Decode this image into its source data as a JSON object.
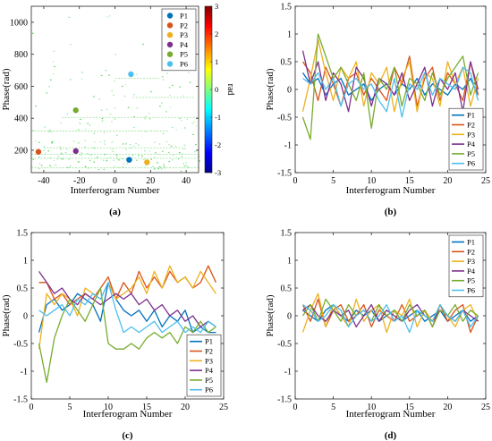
{
  "chart_data": [
    {
      "panel": "(a)",
      "type": "heatmap",
      "xlabel": "Interferogram Number",
      "ylabel": "Phase(rad)",
      "xlim": [
        -47,
        47
      ],
      "ylim": [
        60,
        1100
      ],
      "xticks": [
        -40,
        -20,
        0,
        20,
        40
      ],
      "yticks": [
        200,
        400,
        600,
        800,
        1000
      ],
      "colorbar": {
        "label": "rad",
        "range": [
          -3,
          3
        ],
        "ticks": [
          3,
          2,
          1,
          0,
          -1,
          -2,
          -3
        ]
      },
      "legend_position": "top-right",
      "points": [
        {
          "name": "P1",
          "x": 8,
          "y": 140,
          "color": "#0072BD"
        },
        {
          "name": "P2",
          "x": -43,
          "y": 190,
          "color": "#D95319"
        },
        {
          "name": "P3",
          "x": 18,
          "y": 125,
          "color": "#EDB120"
        },
        {
          "name": "P4",
          "x": -22,
          "y": 195,
          "color": "#7E2F8E"
        },
        {
          "name": "P5",
          "x": -22,
          "y": 450,
          "color": "#77AC30"
        },
        {
          "name": "P6",
          "x": 9,
          "y": 675,
          "color": "#4DBEEE"
        }
      ]
    },
    {
      "panel": "(b)",
      "type": "line",
      "xlabel": "Interferogram Number",
      "ylabel": "Phase(rad)",
      "xlim": [
        0,
        25
      ],
      "ylim": [
        -1.5,
        1.5
      ],
      "xticks": [
        0,
        5,
        10,
        15,
        20,
        25
      ],
      "yticks": [
        -1.5,
        -1,
        -0.5,
        0,
        0.5,
        1,
        1.5
      ],
      "legend_position": "bottom-right",
      "x": [
        1,
        2,
        3,
        4,
        5,
        6,
        7,
        8,
        9,
        10,
        11,
        12,
        13,
        14,
        15,
        16,
        17,
        18,
        19,
        20,
        21,
        22,
        23,
        24
      ],
      "series": [
        {
          "name": "P1",
          "color": "#0072BD",
          "values": [
            0.3,
            0.1,
            0.2,
            -0.1,
            0.1,
            0.2,
            -0.1,
            0.0,
            0.1,
            -0.2,
            0.0,
            0.1,
            -0.1,
            0.1,
            0.0,
            0.2,
            -0.1,
            0.1,
            0.0,
            -0.1,
            0.1,
            0.0,
            0.2,
            -0.1
          ]
        },
        {
          "name": "P2",
          "color": "#D95319",
          "values": [
            0.5,
            0.3,
            -0.2,
            0.4,
            0.1,
            -0.3,
            0.2,
            0.3,
            -0.1,
            0.2,
            0.0,
            -0.2,
            0.4,
            0.1,
            0.6,
            -0.3,
            0.2,
            0.4,
            -0.2,
            0.3,
            0.1,
            -0.2,
            0.5,
            -0.1
          ]
        },
        {
          "name": "P3",
          "color": "#EDB120",
          "values": [
            -0.4,
            0.2,
            0.9,
            0.3,
            -0.2,
            0.4,
            0.2,
            0.5,
            -0.3,
            0.3,
            0.1,
            0.4,
            -0.4,
            0.2,
            0.5,
            -0.4,
            0.3,
            0.2,
            -0.3,
            0.5,
            0.1,
            0.4,
            -0.3,
            0.2
          ]
        },
        {
          "name": "P4",
          "color": "#7E2F8E",
          "values": [
            0.7,
            0.1,
            0.5,
            -0.2,
            0.3,
            0.1,
            -0.4,
            0.4,
            0.2,
            -0.3,
            0.2,
            0.1,
            -0.1,
            0.3,
            -0.2,
            0.1,
            0.4,
            -0.3,
            0.2,
            0.0,
            0.3,
            -0.4,
            0.5,
            0.0
          ]
        },
        {
          "name": "P5",
          "color": "#77AC30",
          "values": [
            -0.5,
            -0.9,
            1.0,
            0.6,
            0.2,
            0.4,
            0.1,
            -0.2,
            0.3,
            -0.7,
            0.2,
            0.0,
            0.4,
            -0.3,
            0.2,
            0.1,
            -0.2,
            0.3,
            -0.1,
            0.2,
            0.4,
            0.6,
            -0.1,
            0.3
          ]
        },
        {
          "name": "P6",
          "color": "#4DBEEE",
          "values": [
            0.2,
            0.1,
            0.3,
            0.0,
            0.2,
            -0.3,
            0.1,
            0.2,
            0.0,
            0.1,
            -0.2,
            -0.4,
            0.2,
            -0.5,
            0.1,
            0.0,
            0.3,
            -0.1,
            0.2,
            0.1,
            0.0,
            0.4,
            0.3,
            -0.2
          ]
        }
      ]
    },
    {
      "panel": "(c)",
      "type": "line",
      "xlabel": "Interferogram Number",
      "ylabel": "Phase(rad)",
      "xlim": [
        0,
        25
      ],
      "ylim": [
        -1.5,
        1.5
      ],
      "xticks": [
        0,
        5,
        10,
        15,
        20,
        25
      ],
      "yticks": [
        -1.5,
        -1,
        -0.5,
        0,
        0.5,
        1,
        1.5
      ],
      "legend_position": "bottom-right",
      "x": [
        1,
        2,
        3,
        4,
        5,
        6,
        7,
        8,
        9,
        10,
        11,
        12,
        13,
        14,
        15,
        16,
        17,
        18,
        19,
        20,
        21,
        22,
        23,
        24
      ],
      "series": [
        {
          "name": "P1",
          "color": "#0072BD",
          "values": [
            -0.3,
            0.2,
            0.3,
            0.1,
            0.2,
            0.4,
            0.3,
            0.2,
            -0.1,
            0.6,
            0.3,
            0.1,
            0.0,
            0.1,
            -0.1,
            0.1,
            -0.2,
            0.0,
            -0.1,
            0.1,
            -0.3,
            -0.2,
            -0.3,
            -0.3
          ]
        },
        {
          "name": "P2",
          "color": "#D95319",
          "values": [
            0.6,
            0.6,
            0.3,
            0.4,
            0.2,
            0.3,
            0.4,
            0.3,
            0.5,
            0.7,
            0.3,
            0.6,
            0.4,
            0.8,
            0.5,
            0.7,
            0.5,
            0.8,
            0.6,
            0.7,
            0.5,
            0.6,
            0.9,
            0.6
          ]
        },
        {
          "name": "P3",
          "color": "#EDB120",
          "values": [
            -0.6,
            0.4,
            0.2,
            0.4,
            0.3,
            0.0,
            0.5,
            0.4,
            0.3,
            0.6,
            0.3,
            0.4,
            0.5,
            0.7,
            0.4,
            0.8,
            0.5,
            0.9,
            0.6,
            0.7,
            0.5,
            0.8,
            0.6,
            0.4
          ]
        },
        {
          "name": "P4",
          "color": "#7E2F8E",
          "values": [
            0.8,
            0.6,
            0.4,
            0.5,
            0.3,
            0.2,
            0.4,
            0.3,
            0.2,
            0.3,
            0.4,
            0.3,
            0.4,
            0.2,
            0.3,
            0.1,
            0.2,
            0.0,
            0.1,
            -0.1,
            0.0,
            -0.2,
            -0.1,
            -0.2
          ]
        },
        {
          "name": "P5",
          "color": "#77AC30",
          "values": [
            -0.5,
            -1.2,
            -0.4,
            0.0,
            0.3,
            0.1,
            -0.1,
            0.2,
            0.5,
            -0.5,
            -0.6,
            -0.6,
            -0.5,
            -0.6,
            -0.4,
            -0.3,
            -0.4,
            -0.3,
            -0.5,
            -0.2,
            -0.3,
            -0.1,
            -0.3,
            -0.2
          ]
        },
        {
          "name": "P6",
          "color": "#4DBEEE",
          "values": [
            0.1,
            0.0,
            0.1,
            0.2,
            0.0,
            0.3,
            0.2,
            0.4,
            0.3,
            0.6,
            0.1,
            -0.3,
            -0.2,
            -0.3,
            -0.2,
            -0.1,
            -0.3,
            -0.2,
            -0.1,
            -0.3,
            -0.2,
            -0.3,
            -0.1,
            -0.2
          ]
        }
      ]
    },
    {
      "panel": "(d)",
      "type": "line",
      "xlabel": "Interferogram Number",
      "ylabel": "Phase(rad)",
      "xlim": [
        0,
        25
      ],
      "ylim": [
        -1.5,
        1.5
      ],
      "xticks": [
        0,
        5,
        10,
        15,
        20,
        25
      ],
      "yticks": [
        -1.5,
        -1,
        -0.5,
        0,
        0.5,
        1,
        1.5
      ],
      "legend_position": "top-right",
      "x": [
        1,
        2,
        3,
        4,
        5,
        6,
        7,
        8,
        9,
        10,
        11,
        12,
        13,
        14,
        15,
        16,
        17,
        18,
        19,
        20,
        21,
        22,
        23,
        24
      ],
      "series": [
        {
          "name": "P1",
          "color": "#0072BD",
          "values": [
            0.1,
            0.0,
            -0.1,
            0.1,
            0.2,
            0.0,
            -0.1,
            0.1,
            0.0,
            0.1,
            -0.1,
            0.0,
            0.1,
            -0.1,
            0.0,
            0.1,
            -0.1,
            0.0,
            0.1,
            -0.1,
            0.0,
            0.1,
            -0.1,
            0.0
          ]
        },
        {
          "name": "P2",
          "color": "#D95319",
          "values": [
            0.2,
            -0.1,
            0.3,
            -0.2,
            0.1,
            0.2,
            -0.1,
            0.0,
            0.2,
            -0.2,
            0.1,
            0.0,
            -0.1,
            0.2,
            -0.1,
            0.0,
            0.1,
            -0.2,
            0.2,
            -0.1,
            0.1,
            0.2,
            -0.3,
            0.0
          ]
        },
        {
          "name": "P3",
          "color": "#EDB120",
          "values": [
            -0.3,
            0.1,
            0.4,
            -0.2,
            0.2,
            0.0,
            -0.2,
            0.3,
            -0.1,
            0.1,
            0.2,
            -0.3,
            0.1,
            0.0,
            0.3,
            -0.2,
            0.1,
            -0.1,
            0.2,
            0.0,
            -0.2,
            0.1,
            0.2,
            -0.1
          ]
        },
        {
          "name": "P4",
          "color": "#7E2F8E",
          "values": [
            0.1,
            0.2,
            0.0,
            -0.1,
            0.1,
            0.0,
            0.1,
            -0.2,
            0.0,
            0.2,
            -0.1,
            0.1,
            0.0,
            -0.1,
            0.1,
            0.2,
            0.0,
            -0.1,
            0.1,
            0.0,
            -0.1,
            0.1,
            0.0,
            -0.1
          ]
        },
        {
          "name": "P5",
          "color": "#77AC30",
          "values": [
            0.0,
            0.2,
            -0.1,
            0.3,
            0.1,
            -0.1,
            0.2,
            0.0,
            0.1,
            -0.1,
            0.2,
            0.0,
            0.1,
            -0.1,
            0.2,
            0.0,
            0.1,
            -0.2,
            0.1,
            0.0,
            0.2,
            -0.1,
            0.1,
            0.0
          ]
        },
        {
          "name": "P6",
          "color": "#4DBEEE",
          "values": [
            0.2,
            0.1,
            -0.1,
            0.0,
            0.2,
            0.1,
            -0.2,
            0.0,
            0.1,
            -0.1,
            0.0,
            0.2,
            -0.1,
            0.0,
            -0.3,
            0.1,
            0.0,
            -0.1,
            0.2,
            0.0,
            -0.1,
            0.1,
            -0.2,
            0.0
          ]
        }
      ]
    }
  ]
}
